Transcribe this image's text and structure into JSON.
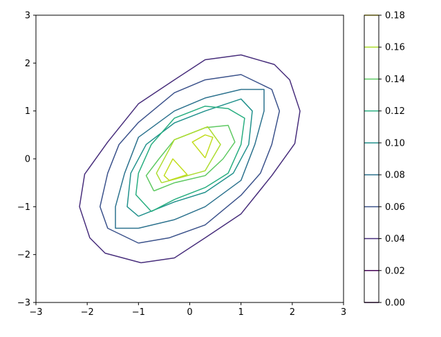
{
  "chart_data": {
    "type": "contour",
    "title": "",
    "xlabel": "",
    "ylabel": "",
    "xlim": [
      -3,
      3
    ],
    "ylim": [
      -3,
      3
    ],
    "xticks": [
      "−3",
      "−2",
      "−1",
      "0",
      "1",
      "2",
      "3"
    ],
    "yticks": [
      "−3",
      "−2",
      "−1",
      "0",
      "1",
      "2",
      "3"
    ],
    "grid": false,
    "colormap": "viridis",
    "colorbar": {
      "placement": "right",
      "range": [
        0,
        0.18
      ],
      "tick_labels": [
        "0.00",
        "0.02",
        "0.04",
        "0.06",
        "0.08",
        "0.10",
        "0.12",
        "0.14",
        "0.16",
        "0.18"
      ],
      "level_colors": [
        "#440154",
        "#472d7b",
        "#3b528b",
        "#2c728e",
        "#21918c",
        "#28ae80",
        "#5ec962",
        "#addc30",
        "#fde725"
      ]
    },
    "contours": [
      {
        "level": 0.02,
        "color": "#472d7b",
        "points": [
          [
            -0.95,
            -2.17
          ],
          [
            -0.3,
            -2.07
          ],
          [
            0.3,
            -1.65
          ],
          [
            1.0,
            -1.15
          ],
          [
            1.6,
            -0.35
          ],
          [
            2.05,
            0.32
          ],
          [
            2.15,
            1.0
          ],
          [
            1.95,
            1.65
          ],
          [
            1.65,
            1.97
          ],
          [
            1.0,
            2.17
          ],
          [
            0.3,
            2.07
          ],
          [
            -0.3,
            1.65
          ],
          [
            -1.0,
            1.15
          ],
          [
            -1.6,
            0.35
          ],
          [
            -2.05,
            -0.32
          ],
          [
            -2.15,
            -1.0
          ],
          [
            -1.95,
            -1.65
          ],
          [
            -1.65,
            -1.97
          ],
          [
            -0.95,
            -2.17
          ]
        ]
      },
      {
        "level": 0.04,
        "color": "#3b528b",
        "points": [
          [
            -1.0,
            -1.76
          ],
          [
            -0.4,
            -1.65
          ],
          [
            0.3,
            -1.38
          ],
          [
            1.0,
            -0.76
          ],
          [
            1.38,
            -0.3
          ],
          [
            1.6,
            0.3
          ],
          [
            1.75,
            1.0
          ],
          [
            1.6,
            1.45
          ],
          [
            1.0,
            1.76
          ],
          [
            0.3,
            1.65
          ],
          [
            -0.3,
            1.38
          ],
          [
            -1.0,
            0.76
          ],
          [
            -1.38,
            0.3
          ],
          [
            -1.6,
            -0.3
          ],
          [
            -1.75,
            -1.0
          ],
          [
            -1.6,
            -1.45
          ],
          [
            -1.0,
            -1.76
          ]
        ]
      },
      {
        "level": 0.06,
        "color": "#2c728e",
        "points": [
          [
            -1.0,
            -1.45
          ],
          [
            -0.3,
            -1.27
          ],
          [
            0.3,
            -1.0
          ],
          [
            1.0,
            -0.45
          ],
          [
            1.27,
            0.3
          ],
          [
            1.45,
            1.0
          ],
          [
            1.45,
            1.45
          ],
          [
            1.0,
            1.45
          ],
          [
            0.3,
            1.27
          ],
          [
            -0.3,
            1.0
          ],
          [
            -1.0,
            0.45
          ],
          [
            -1.27,
            -0.3
          ],
          [
            -1.45,
            -1.0
          ],
          [
            -1.45,
            -1.45
          ],
          [
            -1.0,
            -1.45
          ]
        ]
      },
      {
        "level": 0.08,
        "color": "#21918c",
        "points": [
          [
            -1.0,
            -1.2
          ],
          [
            -0.3,
            -0.9
          ],
          [
            0.3,
            -0.7
          ],
          [
            0.85,
            -0.3
          ],
          [
            1.15,
            0.3
          ],
          [
            1.22,
            1.0
          ],
          [
            1.0,
            1.25
          ],
          [
            0.3,
            1.0
          ],
          [
            -0.3,
            0.75
          ],
          [
            -0.85,
            0.3
          ],
          [
            -1.15,
            -0.3
          ],
          [
            -1.22,
            -1.0
          ],
          [
            -1.0,
            -1.2
          ]
        ]
      },
      {
        "level": 0.1,
        "color": "#28ae80",
        "points": [
          [
            -0.75,
            -1.1
          ],
          [
            -0.3,
            -0.85
          ],
          [
            0.3,
            -0.6
          ],
          [
            0.75,
            -0.3
          ],
          [
            1.0,
            0.3
          ],
          [
            1.07,
            0.85
          ],
          [
            0.75,
            1.05
          ],
          [
            0.3,
            1.1
          ],
          [
            -0.3,
            0.85
          ],
          [
            -0.75,
            0.3
          ],
          [
            -1.0,
            -0.3
          ],
          [
            -1.05,
            -0.75
          ],
          [
            -0.75,
            -1.1
          ]
        ]
      },
      {
        "level": 0.12,
        "color": "#5ec962",
        "points": [
          [
            -0.7,
            -0.67
          ],
          [
            -0.3,
            -0.5
          ],
          [
            0.3,
            -0.35
          ],
          [
            0.65,
            0.0
          ],
          [
            0.88,
            0.35
          ],
          [
            0.75,
            0.7
          ],
          [
            0.3,
            0.65
          ],
          [
            -0.3,
            0.4
          ],
          [
            -0.6,
            0.0
          ],
          [
            -0.85,
            -0.35
          ],
          [
            -0.7,
            -0.67
          ]
        ]
      },
      {
        "level": 0.14,
        "color": "#addc30",
        "points": [
          [
            -0.55,
            -0.5
          ],
          [
            0.3,
            -0.25
          ],
          [
            0.6,
            0.3
          ],
          [
            0.35,
            0.67
          ],
          [
            -0.3,
            0.4
          ],
          [
            -0.65,
            -0.3
          ],
          [
            -0.55,
            -0.5
          ]
        ]
      },
      {
        "level": 0.16,
        "color": "#c2dd1f",
        "points": [
          [
            0.3,
            0.02
          ],
          [
            0.45,
            0.45
          ],
          [
            0.3,
            0.5
          ],
          [
            0.05,
            0.35
          ],
          [
            0.3,
            0.02
          ]
        ]
      },
      {
        "level": 0.16,
        "color": "#c2dd1f",
        "points": [
          [
            -0.4,
            -0.45
          ],
          [
            -0.05,
            -0.33
          ],
          [
            -0.33,
            0.0
          ],
          [
            -0.5,
            -0.35
          ],
          [
            -0.4,
            -0.45
          ]
        ]
      }
    ]
  }
}
